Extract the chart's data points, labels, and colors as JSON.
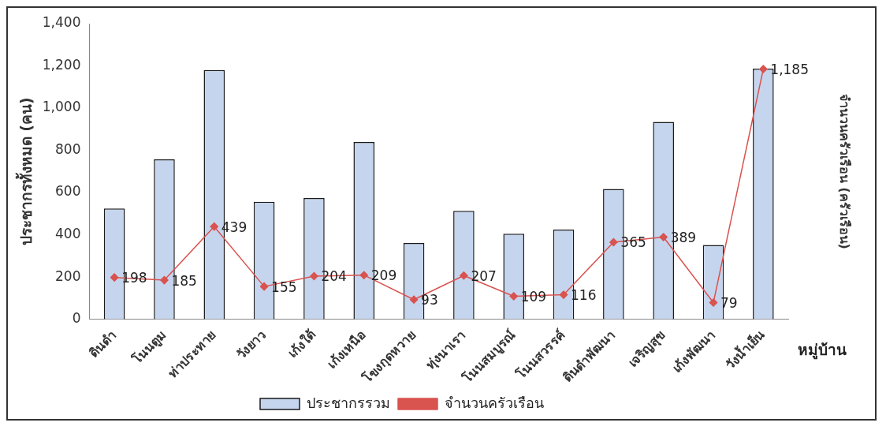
{
  "chart_data": {
    "type": "bar",
    "xlabel": "หมู่บ้าน",
    "ylabel": "ประชากรทั้งหมด (คน)",
    "y2label": "จำนวนครัวเรือน (ครัวเรือน)",
    "categories": [
      "ดินดำ",
      "โนนตูม",
      "ท่าประทาย",
      "วังยาว",
      "เก้งใต้",
      "เก้งเหนือ",
      "โขงกุดหวาย",
      "ทุ่งนาเรา",
      "โนนสมบูรณ์",
      "โนนสวรรค์",
      "ดินดำพัฒนา",
      "เจริญสุข",
      "เก้งพัฒนา",
      "วังน้ำเย็น"
    ],
    "series": [
      {
        "name": "ประชากรรวม",
        "color": "#c6d5ee",
        "values": [
          525,
          757,
          1180,
          556,
          574,
          839,
          361,
          513,
          405,
          425,
          617,
          935,
          352,
          1187
        ]
      },
      {
        "name": "จำนวนครัวเรือน",
        "type": "line",
        "color": "#d9534f",
        "marker": "diamond",
        "values": [
          198,
          185,
          439,
          155,
          204,
          209,
          93,
          207,
          109,
          116,
          365,
          389,
          79,
          1185
        ],
        "value_labels": [
          "198",
          "185",
          "439",
          "155",
          "204",
          "209",
          "93",
          "207",
          "109",
          "116",
          "365",
          "389",
          "79",
          "1,185"
        ]
      }
    ],
    "ylim": [
      0,
      1400
    ],
    "yticks": [
      {
        "value": 0,
        "label": "0"
      },
      {
        "value": 200,
        "label": "200"
      },
      {
        "value": 400,
        "label": "400"
      },
      {
        "value": 600,
        "label": "600"
      },
      {
        "value": 800,
        "label": "800"
      },
      {
        "value": 1000,
        "label": "1,000"
      },
      {
        "value": 1200,
        "label": "1,200"
      },
      {
        "value": 1400,
        "label": "1,400"
      }
    ],
    "grid": false,
    "legend": "bottom"
  }
}
